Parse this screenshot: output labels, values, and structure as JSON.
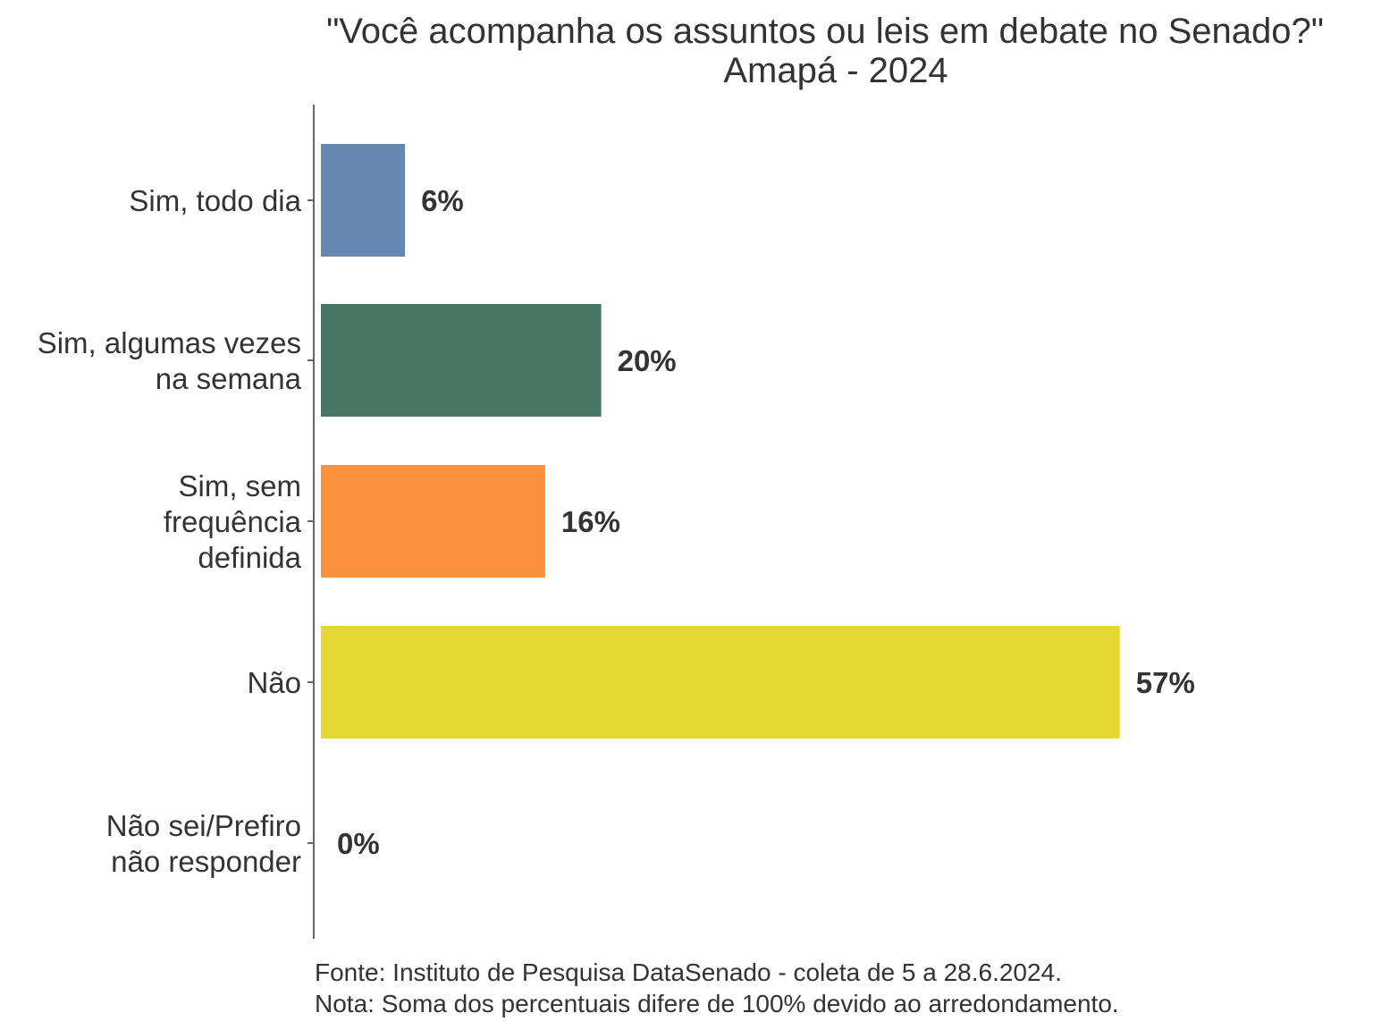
{
  "chart_data": {
    "type": "bar",
    "orientation": "horizontal",
    "title": "\"Você acompanha os assuntos ou leis em debate no Senado?\"",
    "subtitle": "Amapá - 2024",
    "categories": [
      [
        "Sim, todo dia"
      ],
      [
        "Sim, algumas vezes",
        "na semana"
      ],
      [
        "Sim, sem",
        "frequência",
        "definida"
      ],
      [
        "Não"
      ],
      [
        "Não sei/Prefiro",
        "não responder"
      ]
    ],
    "values": [
      6,
      20,
      16,
      57,
      0
    ],
    "value_labels": [
      "6%",
      "20%",
      "16%",
      "57%",
      "0%"
    ],
    "colors": [
      "#6688b0",
      "#467563",
      "#fa913d",
      "#e5d835",
      "#9a9a9a"
    ],
    "xlim": [
      0,
      60
    ],
    "grid": false,
    "legend": "none"
  },
  "caption": {
    "source": "Fonte: Instituto de Pesquisa DataSenado - coleta de 5 a 28.6.2024.",
    "note": "Nota: Soma dos percentuais difere de 100% devido ao arredondamento."
  }
}
